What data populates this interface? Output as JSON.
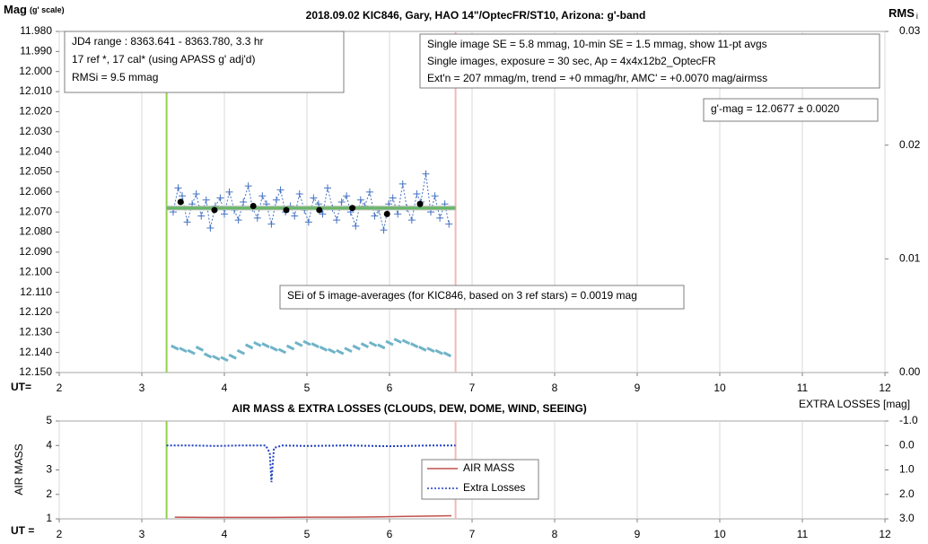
{
  "chart_data": [
    {
      "type": "line",
      "title": "2018.09.02  KIC846,  Gary, HAO 14\"/OptecFR/ST10,  Arizona:  g'-band",
      "ylabel": "Mag",
      "ylabel_note": "(g' scale)",
      "y2label": "RMS",
      "y2label_note": "i",
      "xlabel": "UT=",
      "xlim": [
        2,
        12
      ],
      "xticks": [
        2,
        3,
        4,
        5,
        6,
        7,
        8,
        9,
        10,
        11,
        12
      ],
      "ylim": [
        12.15,
        11.98
      ],
      "yticks": [
        {
          "value": 11.98,
          "label": "11.980"
        },
        {
          "value": 11.99,
          "label": "11.990"
        },
        {
          "value": 12.0,
          "label": "12.000"
        },
        {
          "value": 12.01,
          "label": "12.010"
        },
        {
          "value": 12.02,
          "label": "12.020"
        },
        {
          "value": 12.03,
          "label": "12.030"
        },
        {
          "value": 12.04,
          "label": "12.040"
        },
        {
          "value": 12.05,
          "label": "12.050"
        },
        {
          "value": 12.06,
          "label": "12.060"
        },
        {
          "value": 12.07,
          "label": "12.070"
        },
        {
          "value": 12.08,
          "label": "12.080"
        },
        {
          "value": 12.09,
          "label": "12.090"
        },
        {
          "value": 12.1,
          "label": "12.100"
        },
        {
          "value": 12.11,
          "label": "12.110"
        },
        {
          "value": 12.12,
          "label": "12.120"
        },
        {
          "value": 12.13,
          "label": "12.130"
        },
        {
          "value": 12.14,
          "label": "12.140"
        },
        {
          "value": 12.15,
          "label": "12.150"
        }
      ],
      "y2lim": [
        0,
        0.03
      ],
      "y2ticks": [
        {
          "value": 0,
          "label": "0.00"
        },
        {
          "value": 0.01,
          "label": "0.01"
        },
        {
          "value": 0.02,
          "label": "0.02"
        },
        {
          "value": 0.03,
          "label": "0.03"
        }
      ],
      "grid": "x",
      "vlines": [
        {
          "x": 3.3,
          "color": "#92d050"
        },
        {
          "x": 6.8,
          "color": "#f4b8b8"
        }
      ],
      "series": [
        {
          "color": "#4472c4",
          "line": "dotted",
          "marker": "plus",
          "x": [
            3.38,
            3.44,
            3.49,
            3.55,
            3.61,
            3.66,
            3.72,
            3.78,
            3.83,
            3.89,
            3.95,
            4.0,
            4.06,
            4.12,
            4.17,
            4.23,
            4.29,
            4.34,
            4.4,
            4.46,
            4.51,
            4.57,
            4.63,
            4.68,
            4.74,
            4.8,
            4.85,
            4.91,
            4.97,
            5.02,
            5.08,
            5.14,
            5.19,
            5.25,
            5.31,
            5.36,
            5.42,
            5.48,
            5.53,
            5.59,
            5.65,
            5.7,
            5.76,
            5.82,
            5.87,
            5.93,
            5.99,
            6.04,
            6.1,
            6.16,
            6.21,
            6.27,
            6.33,
            6.38,
            6.44,
            6.5,
            6.55,
            6.61,
            6.67,
            6.72
          ],
          "values": [
            12.07,
            12.058,
            12.062,
            12.075,
            12.066,
            12.061,
            12.072,
            12.064,
            12.078,
            12.067,
            12.063,
            12.071,
            12.06,
            12.069,
            12.074,
            12.065,
            12.057,
            12.068,
            12.073,
            12.062,
            12.066,
            12.076,
            12.064,
            12.059,
            12.07,
            12.067,
            12.072,
            12.061,
            12.069,
            12.075,
            12.063,
            12.066,
            12.071,
            12.058,
            12.068,
            12.074,
            12.065,
            12.062,
            12.07,
            12.077,
            12.064,
            12.067,
            12.06,
            12.072,
            12.069,
            12.079,
            12.066,
            12.063,
            12.071,
            12.056,
            12.068,
            12.074,
            12.061,
            12.065,
            12.051,
            12.07,
            12.062,
            12.073,
            12.066,
            12.076
          ]
        },
        {
          "color": "#9fb89f",
          "line": "solid",
          "marker": "none",
          "width": 5,
          "x": [
            3.3,
            6.8
          ],
          "values": [
            12.068,
            12.068
          ]
        },
        {
          "color": "#5cb85c",
          "line": "solid",
          "marker": "none",
          "width": 2,
          "x": [
            3.3,
            6.8
          ],
          "values": [
            12.068,
            12.068
          ]
        },
        {
          "color": "#000000",
          "line": "none",
          "marker": "dot",
          "x": [
            3.47,
            3.88,
            4.35,
            4.75,
            5.15,
            5.55,
            5.97,
            6.37
          ],
          "values": [
            12.065,
            12.069,
            12.067,
            12.069,
            12.069,
            12.068,
            12.071,
            12.066
          ]
        },
        {
          "color": "#6fb3c8",
          "line": "none",
          "marker": "dash",
          "axis": "y2",
          "x": [
            3.4,
            3.5,
            3.6,
            3.7,
            3.8,
            3.9,
            4.0,
            4.1,
            4.2,
            4.3,
            4.4,
            4.5,
            4.6,
            4.7,
            4.8,
            4.9,
            5.0,
            5.1,
            5.2,
            5.3,
            5.4,
            5.5,
            5.6,
            5.7,
            5.8,
            5.9,
            6.0,
            6.1,
            6.2,
            6.3,
            6.4,
            6.5,
            6.6,
            6.7
          ],
          "values": [
            0.0022,
            0.002,
            0.0018,
            0.0021,
            0.0015,
            0.0013,
            0.0012,
            0.0014,
            0.0018,
            0.0023,
            0.0025,
            0.0024,
            0.0021,
            0.0019,
            0.0022,
            0.0025,
            0.0026,
            0.0024,
            0.0021,
            0.0019,
            0.0018,
            0.002,
            0.0022,
            0.0024,
            0.0025,
            0.0023,
            0.0026,
            0.0028,
            0.0027,
            0.0024,
            0.0021,
            0.002,
            0.0018,
            0.0016
          ]
        }
      ],
      "annotations": [
        {
          "lines": [
            "JD4 range : 8363.641 - 8363.780, 3.3  hr",
            "17 ref *, 17 cal* (using APASS g' adj'd)",
            "RMSi = 9.5 mmag"
          ]
        },
        {
          "lines": [
            "Single image SE = 5.8 mmag, 10-min SE = 1.5 mmag, show  11-pt avgs",
            "Single images, exposure = 30 sec, Ap = 4x4x12b2_OptecFR",
            "Ext'n = 207 mmag/m, trend =  +0 mmag/hr, AMC' = +0.0070 mag/airmss"
          ]
        },
        {
          "lines": [
            "g'-mag = 12.0677 ± 0.0020"
          ]
        },
        {
          "lines": [
            "SEi of 5 image-averages (for KIC846, based on 3 ref stars) = 0.0019  mag"
          ]
        }
      ]
    },
    {
      "type": "line",
      "title": "AIR MASS & EXTRA LOSSES (CLOUDS, DEW, DOME, WIND, SEEING)",
      "ylabel": "AIR MASS",
      "y2label": "EXTRA LOSSES [mag]",
      "xlabel": "UT =",
      "xlim": [
        2,
        12
      ],
      "xticks": [
        2,
        3,
        4,
        5,
        6,
        7,
        8,
        9,
        10,
        11,
        12
      ],
      "ylim": [
        1,
        5
      ],
      "yticks": [
        1,
        2,
        3,
        4,
        5
      ],
      "y2lim": [
        3.0,
        -1.0
      ],
      "y2ticks": [
        {
          "value": -1.0,
          "label": "-1.0"
        },
        {
          "value": 0.0,
          "label": "0.0"
        },
        {
          "value": 1.0,
          "label": "1.0"
        },
        {
          "value": 2.0,
          "label": "2.0"
        },
        {
          "value": 3.0,
          "label": "3.0"
        }
      ],
      "grid": "x",
      "vlines": [
        {
          "x": 3.3,
          "color": "#92d050"
        },
        {
          "x": 6.8,
          "color": "#f4b8b8"
        }
      ],
      "series": [
        {
          "name": "AIR MASS",
          "color": "#c0504d",
          "line": "solid",
          "marker": "none",
          "width": 1.5,
          "x": [
            3.4,
            3.8,
            4.2,
            4.6,
            5.0,
            5.4,
            5.8,
            6.2,
            6.6,
            6.75
          ],
          "values": [
            1.07,
            1.06,
            1.06,
            1.06,
            1.07,
            1.07,
            1.08,
            1.1,
            1.12,
            1.13
          ]
        },
        {
          "name": "Extra Losses",
          "color": "#1f3fbf",
          "line": "dotted",
          "marker": "none",
          "width": 2,
          "axis": "y2",
          "x": [
            3.3,
            3.6,
            3.9,
            4.2,
            4.5,
            4.55,
            4.57,
            4.6,
            4.7,
            5.0,
            5.5,
            6.0,
            6.5,
            6.8
          ],
          "values": [
            0.0,
            0.0,
            0.02,
            0.0,
            0.0,
            0.3,
            1.5,
            0.1,
            0.0,
            0.02,
            0.0,
            0.03,
            0.0,
            0.0
          ]
        }
      ]
    }
  ]
}
